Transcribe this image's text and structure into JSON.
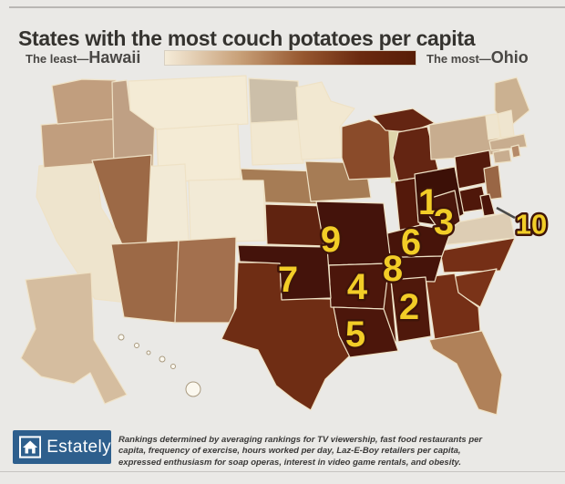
{
  "page": {
    "bg": "#eae9e6"
  },
  "header": {
    "title": "States with the most couch potatoes per capita"
  },
  "legend": {
    "least_label": "The least—",
    "least_state": "Hawaii",
    "most_label": "The most—",
    "most_state": "Ohio",
    "gradient": {
      "start": "#f5ecd9",
      "mid1": "#c8a078",
      "mid2": "#96572f",
      "mid3": "#6b2a10",
      "end": "#581d07"
    }
  },
  "map": {
    "ocean": "#eae9e6",
    "lake": "#ded5ab",
    "border": "#efe2c6",
    "number_fill": "#f2cd27",
    "number_outline": "#3f1409",
    "leader_color": "#4a4a48",
    "hawaii_outline": "#a99a80",
    "states": [
      {
        "id": "CA",
        "name": "California",
        "fill": "#eee4cd"
      },
      {
        "id": "OR",
        "name": "Oregon",
        "fill": "#c19e7e"
      },
      {
        "id": "WA",
        "name": "Washington",
        "fill": "#c19e7e"
      },
      {
        "id": "ID",
        "name": "Idaho",
        "fill": "#bfa084"
      },
      {
        "id": "MT",
        "name": "Montana",
        "fill": "#f4ebd5"
      },
      {
        "id": "WY",
        "name": "Wyoming",
        "fill": "#f4ebd5"
      },
      {
        "id": "UT",
        "name": "Utah",
        "fill": "#f2ead6"
      },
      {
        "id": "CO",
        "name": "Colorado",
        "fill": "#f2ead6"
      },
      {
        "id": "NV",
        "name": "Nevada",
        "fill": "#9c6946"
      },
      {
        "id": "AZ",
        "name": "Arizona",
        "fill": "#9c6946"
      },
      {
        "id": "NM",
        "name": "New Mexico",
        "fill": "#a3704e"
      },
      {
        "id": "ND",
        "name": "North Dakota",
        "fill": "#ccbfa9"
      },
      {
        "id": "SD",
        "name": "South Dakota",
        "fill": "#f2e8d1"
      },
      {
        "id": "MN",
        "name": "Minnesota",
        "fill": "#f2e8d1"
      },
      {
        "id": "NE",
        "name": "Nebraska",
        "fill": "#a67c55"
      },
      {
        "id": "IA",
        "name": "Iowa",
        "fill": "#a67c55"
      },
      {
        "id": "KS",
        "name": "Kansas",
        "fill": "#602310"
      },
      {
        "id": "TX",
        "name": "Texas",
        "fill": "#6f2d14"
      },
      {
        "id": "WI",
        "name": "Wisconsin",
        "fill": "#8a4b2a"
      },
      {
        "id": "MIU",
        "name": "Michigan",
        "part": "upper-peninsula",
        "fill": "#642512"
      },
      {
        "id": "MIL",
        "name": "Michigan",
        "part": "lower-peninsula",
        "fill": "#642512"
      },
      {
        "id": "IN",
        "name": "Indiana",
        "fill": "#54190b"
      },
      {
        "id": "NY",
        "name": "New York",
        "fill": "#c8ad8f"
      },
      {
        "id": "PA",
        "name": "Pennsylvania",
        "fill": "#531a0c"
      },
      {
        "id": "NJ",
        "name": "New Jersey",
        "fill": "#996645"
      },
      {
        "id": "ME",
        "name": "Maine",
        "fill": "#cbb191"
      },
      {
        "id": "VT",
        "name": "Vermont",
        "fill": "#efe5cf"
      },
      {
        "id": "NH",
        "name": "New Hampshire",
        "fill": "#efe5cf"
      },
      {
        "id": "MA",
        "name": "Massachusetts",
        "fill": "#c8ad8f"
      },
      {
        "id": "CT",
        "name": "Connecticut",
        "fill": "#c8ad8f"
      },
      {
        "id": "RI",
        "name": "Rhode Island",
        "fill": "#b58a69"
      },
      {
        "id": "VA",
        "name": "Virginia",
        "fill": "#ddcdb4"
      },
      {
        "id": "MD",
        "name": "Maryland",
        "fill": "#4f170a"
      },
      {
        "id": "DE",
        "name": "Delaware",
        "fill": "#4b150a",
        "rank": 10
      },
      {
        "id": "NC",
        "name": "North Carolina",
        "fill": "#752f16"
      },
      {
        "id": "SC",
        "name": "South Carolina",
        "fill": "#7a3318"
      },
      {
        "id": "GA",
        "name": "Georgia",
        "fill": "#752f16"
      },
      {
        "id": "FL",
        "name": "Florida",
        "fill": "#b08159"
      },
      {
        "id": "AK",
        "name": "Alaska",
        "fill": "#d5bd9f"
      },
      {
        "id": "HI",
        "name": "Hawaii",
        "fill": "#fbf8ef"
      },
      {
        "id": "MS",
        "name": "Mississippi",
        "fill": "#551c0d"
      },
      {
        "id": "OH",
        "name": "Ohio",
        "fill": "#3c1007",
        "rank": 1
      },
      {
        "id": "WV",
        "name": "West Virginia",
        "fill": "#4a170c",
        "rank": 3
      },
      {
        "id": "KY",
        "name": "Kentucky",
        "fill": "#47140a",
        "rank": 6
      },
      {
        "id": "TN",
        "name": "Tennessee",
        "fill": "#45130a",
        "rank": 8
      },
      {
        "id": "MO",
        "name": "Missouri",
        "fill": "#44130b",
        "rank": 9
      },
      {
        "id": "AR",
        "name": "Arkansas",
        "fill": "#4c160b",
        "rank": 4
      },
      {
        "id": "LA",
        "name": "Louisiana",
        "fill": "#4c160b",
        "rank": 5
      },
      {
        "id": "AL",
        "name": "Alabama",
        "fill": "#4f180b",
        "rank": 2
      },
      {
        "id": "OK",
        "name": "Oklahoma",
        "fill": "#44130b",
        "rank": 7
      }
    ]
  },
  "rankings": [
    {
      "rank": 1,
      "state": "Ohio"
    },
    {
      "rank": 2,
      "state": "Alabama"
    },
    {
      "rank": 3,
      "state": "West Virginia"
    },
    {
      "rank": 4,
      "state": "Arkansas"
    },
    {
      "rank": 5,
      "state": "Louisiana"
    },
    {
      "rank": 6,
      "state": "Kentucky"
    },
    {
      "rank": 7,
      "state": "Oklahoma"
    },
    {
      "rank": 8,
      "state": "Tennessee"
    },
    {
      "rank": 9,
      "state": "Missouri"
    },
    {
      "rank": 10,
      "state": "Delaware"
    }
  ],
  "footer": {
    "logo_text": "Estately",
    "logo_bg": "#2e5f8d",
    "note": "Rankings determined by averaging rankings for TV viewership, fast food restaurants per capita, frequency of exercise, hours worked per day, Laz-E-Boy retailers per capita, expressed enthusiasm for soap operas, interest in video game rentals, and obesity."
  }
}
